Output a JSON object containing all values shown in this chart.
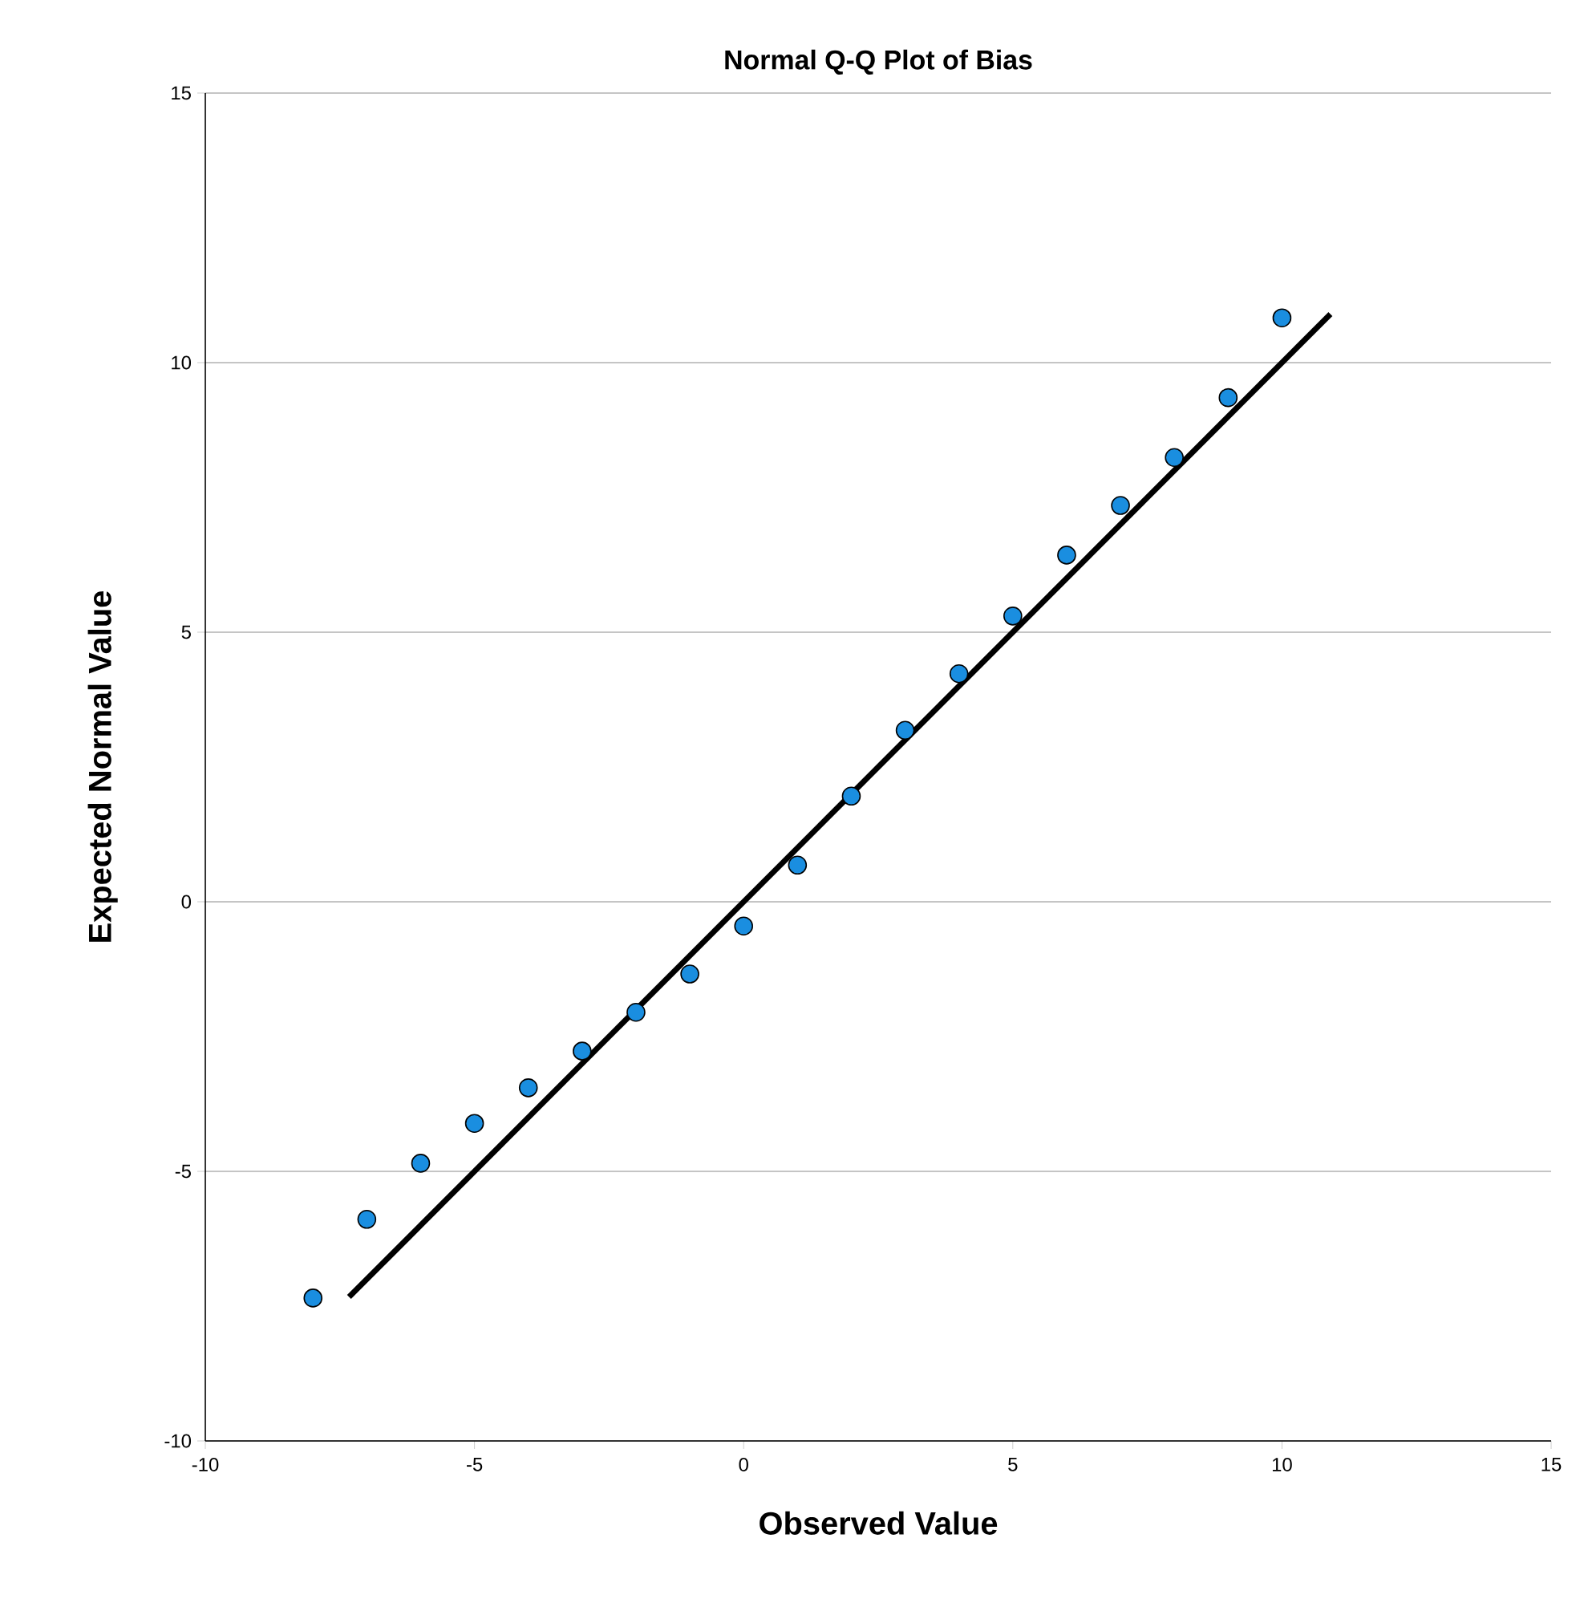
{
  "chart_data": {
    "type": "scatter",
    "title": "Normal Q-Q Plot of Bias",
    "xlabel": "Observed Value",
    "ylabel": "Expected Normal Value",
    "xlim": [
      -10,
      15
    ],
    "ylim": [
      -10,
      15
    ],
    "xticks": [
      -10,
      -5,
      0,
      5,
      10,
      15
    ],
    "yticks": [
      -10,
      -5,
      0,
      5,
      10,
      15
    ],
    "grid": "y",
    "series": [
      {
        "marker": "circle",
        "color": "#1a8ee0",
        "x": [
          -8,
          -7,
          -6,
          -5,
          -4,
          -3,
          -2,
          -1,
          0,
          1,
          2,
          3,
          4,
          5,
          6,
          7,
          8,
          9,
          10
        ],
        "values": [
          -7.35,
          -5.89,
          -4.85,
          -4.11,
          -3.45,
          -2.77,
          -2.05,
          -1.34,
          -0.45,
          0.68,
          1.96,
          3.18,
          4.23,
          5.3,
          6.43,
          7.35,
          8.24,
          9.35,
          10.83
        ]
      },
      {
        "type": "line",
        "marker": "none",
        "color": "#000000",
        "x": [
          -7.33,
          10.9
        ],
        "values": [
          -7.33,
          10.9
        ]
      }
    ]
  }
}
